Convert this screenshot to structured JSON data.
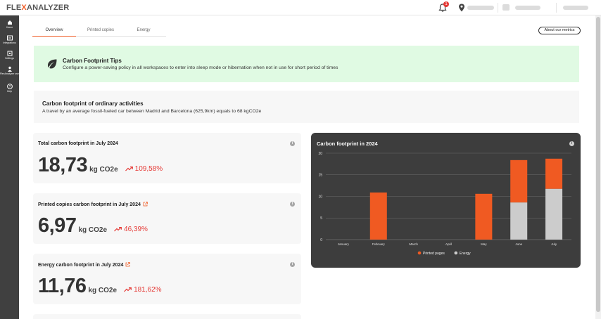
{
  "app": {
    "logo_prefix": "FLE",
    "logo_x": "X",
    "logo_suffix": "ANALYZER",
    "notification_count": "1"
  },
  "sidebar": {
    "items": [
      {
        "label": "Home",
        "icon": "home-icon"
      },
      {
        "label": "Integrations",
        "icon": "integrations-icon"
      },
      {
        "label": "Settings",
        "icon": "settings-icon"
      },
      {
        "label": "FlexAnalyzer users",
        "icon": "users-icon"
      },
      {
        "label": "Help",
        "icon": "help-icon"
      }
    ]
  },
  "tabs": [
    {
      "label": "Overview",
      "active": true
    },
    {
      "label": "Printed copies",
      "active": false
    },
    {
      "label": "Energy",
      "active": false
    }
  ],
  "about_button": "About our metrics",
  "tip": {
    "title": "Carbon Footprint Tips",
    "text": "Configure a power-saving policy in all workspaces to enter into sleep mode or hibernation when not in use for short period of times"
  },
  "ordinary": {
    "title": "Carbon footprint of ordinary activities",
    "text": "A travel by an average fossil-fueled car between Madrid and Barcelona (625,9km) equals to 68 kgCO2e"
  },
  "cards": [
    {
      "title": "Total carbon footprint in July 2024",
      "value": "18,73",
      "unit": "kg CO2e",
      "change": "109,58%",
      "external": false
    },
    {
      "title": "Printed copies carbon footprint in July 2024",
      "value": "6,97",
      "unit": "kg CO2e",
      "change": "46,39%",
      "external": true
    },
    {
      "title": "Energy carbon footprint in July 2024",
      "value": "11,76",
      "unit": "kg CO2e",
      "change": "181,62%",
      "external": true
    }
  ],
  "colors": {
    "accent": "#f05a22",
    "trend_up": "#e53935",
    "tip_bg": "#e0fae3",
    "chart_bg": "#3d3d3d",
    "printed": "#f05a22",
    "energy": "#cccccc"
  },
  "chart_data": {
    "type": "bar",
    "stacked": true,
    "title": "Carbon footprint in 2024",
    "categories": [
      "January",
      "February",
      "March",
      "April",
      "May",
      "June",
      "July"
    ],
    "series": [
      {
        "name": "Energy",
        "values": [
          0,
          0,
          0,
          0,
          0,
          8.6,
          11.76
        ]
      },
      {
        "name": "Printed pages",
        "values": [
          0,
          10.9,
          0,
          0,
          10.6,
          9.8,
          6.97
        ]
      }
    ],
    "ylim": [
      0,
      20
    ],
    "yticks": [
      0,
      5,
      10,
      15,
      20
    ],
    "grid": true,
    "legend": "bottom-center"
  }
}
